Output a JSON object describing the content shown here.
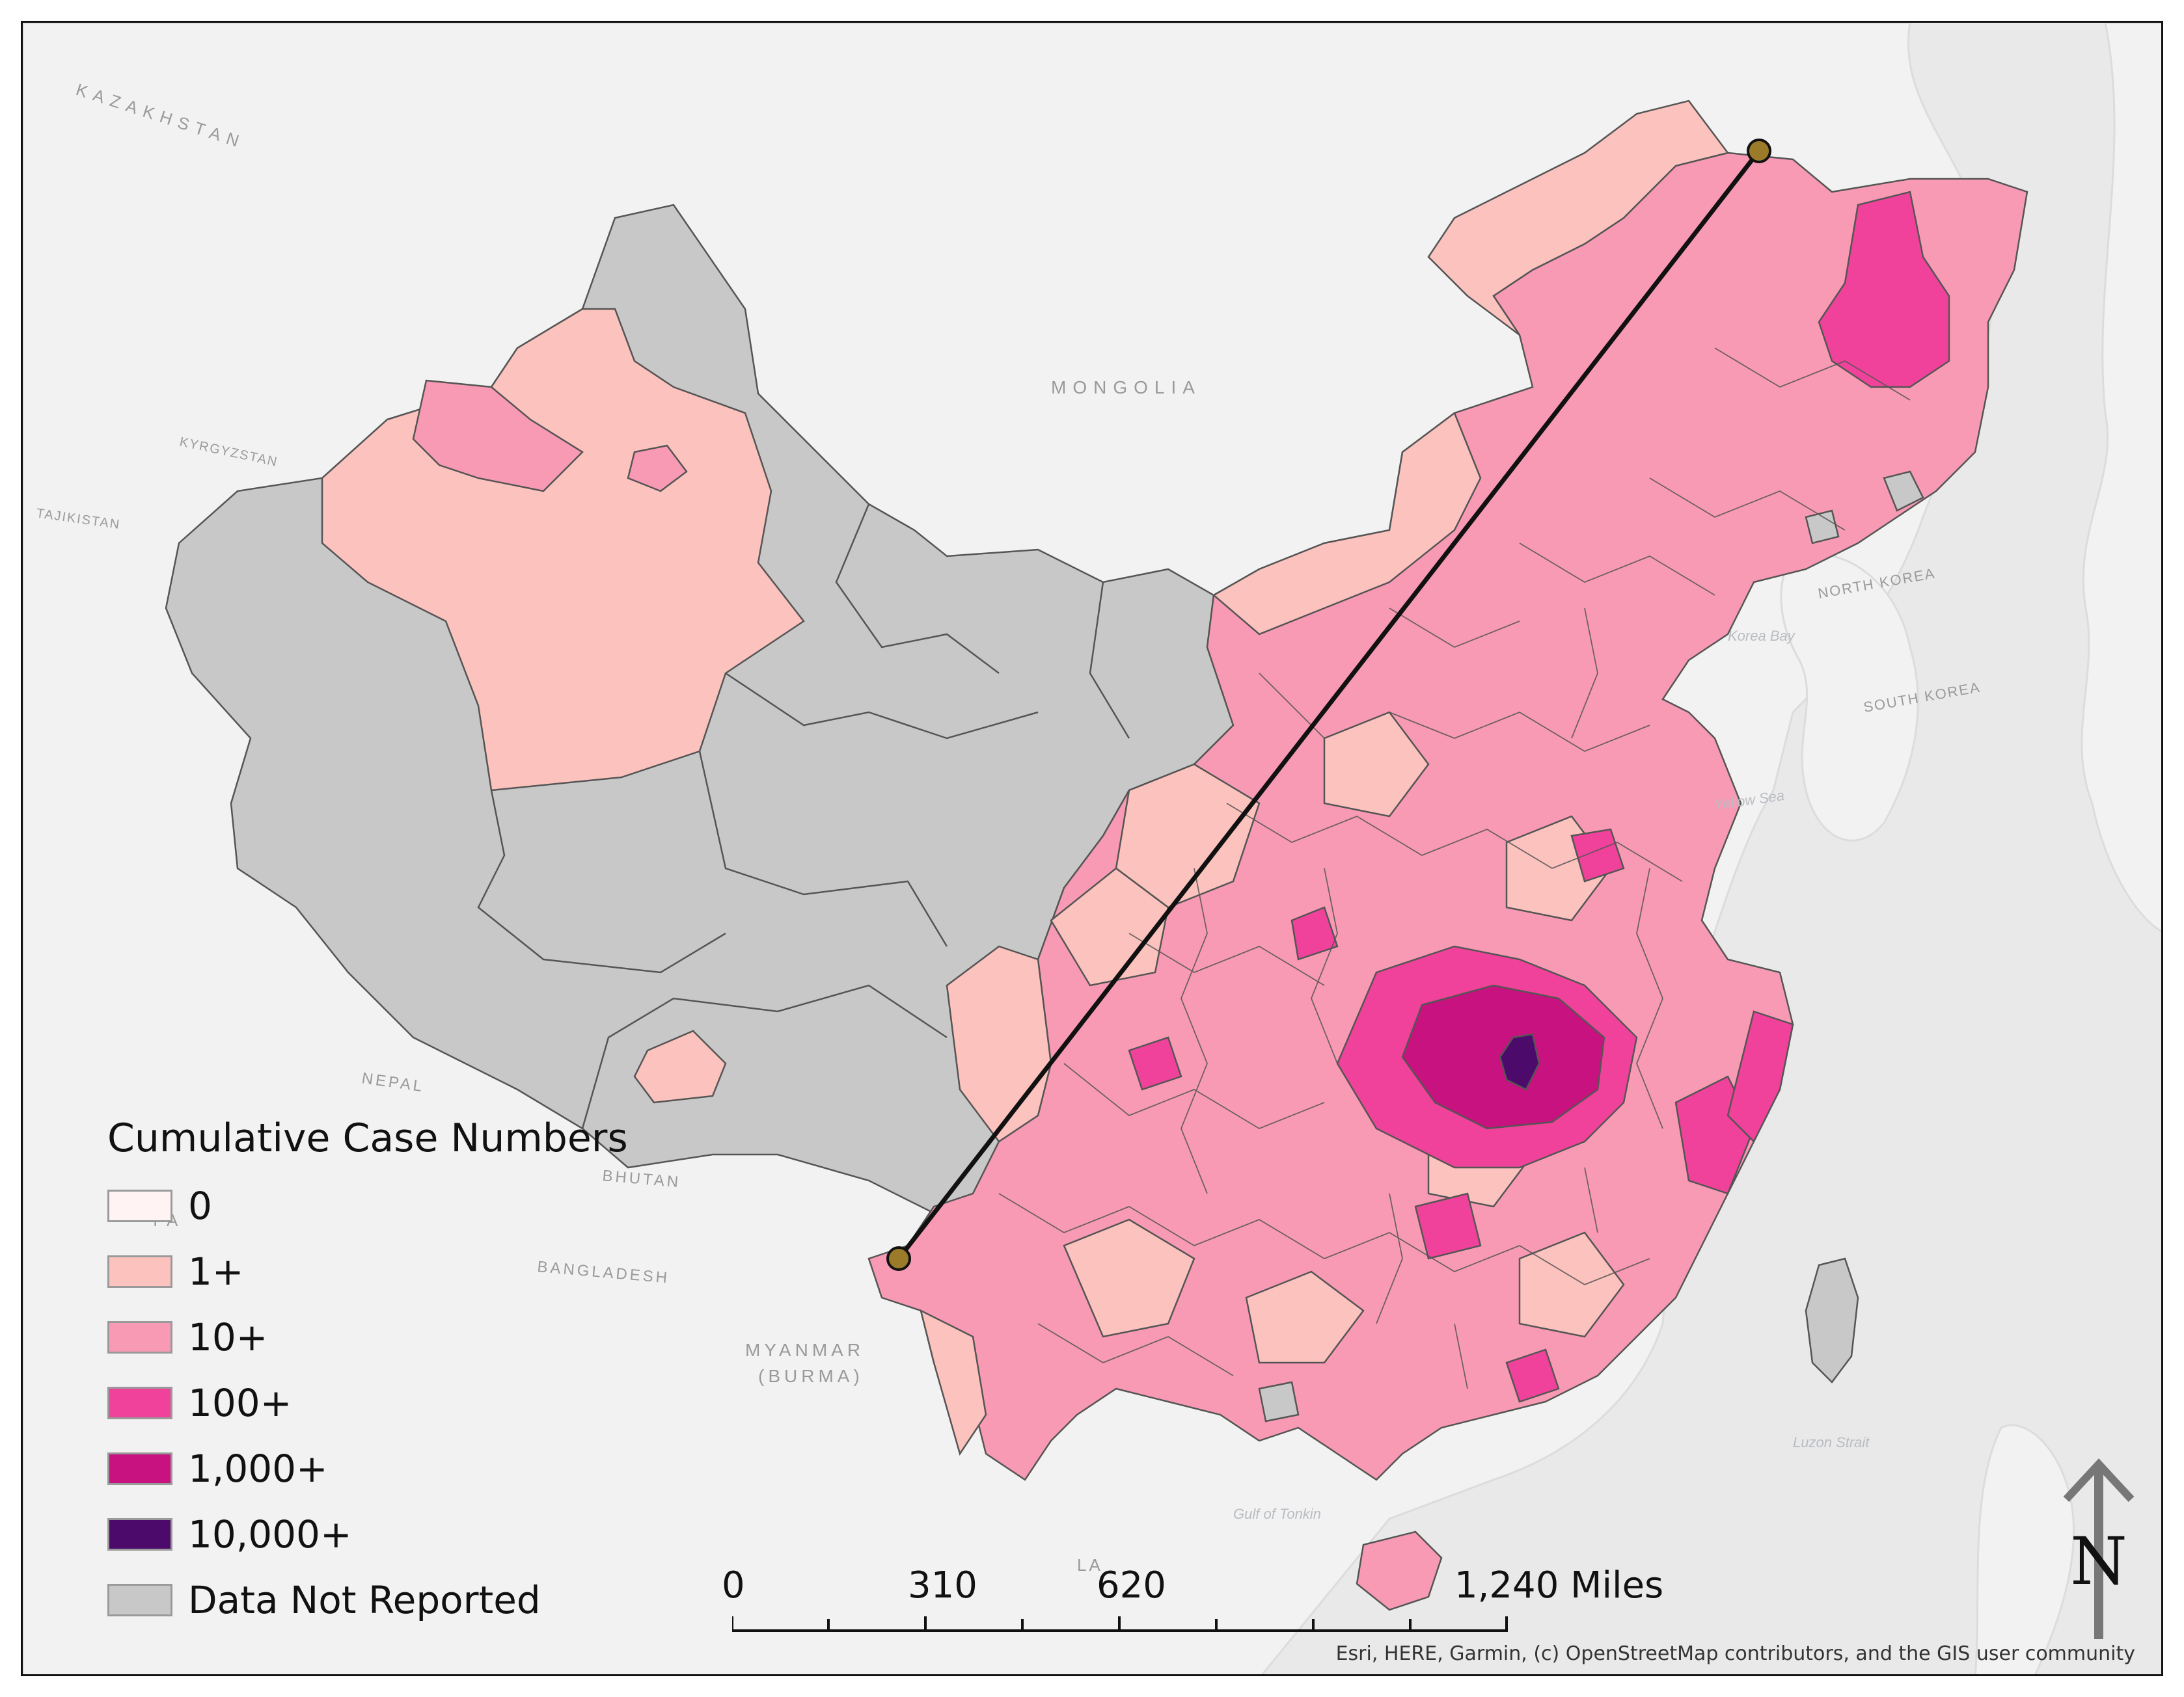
{
  "map": {
    "country_labels": {
      "kazakhstan": "KAZAKHSTAN",
      "mongolia": "MONGOLIA",
      "kyrgyzstan": "KYRGYZSTAN",
      "tajikistan": "TAJIKISTAN",
      "nepal": "NEPAL",
      "bhutan": "BHUTAN",
      "bangladesh": "BANGLADESH",
      "myanmar": "MYANMAR",
      "burma": "(BURMA)",
      "north_korea": "NORTH KOREA",
      "south_korea": "SOUTH KOREA",
      "lao": "LA",
      "india": "I A"
    },
    "water_labels": {
      "korea_bay": "Korea Bay",
      "yellow_sea": "Yellow Sea",
      "gulf_of_tonkin": "Gulf of Tonkin",
      "luzon_strait": "Luzon Strait"
    }
  },
  "legend": {
    "title": "Cumulative Case Numbers",
    "items": [
      {
        "label": "0",
        "color": "#fff4f3"
      },
      {
        "label": "1+",
        "color": "#fcc2bd"
      },
      {
        "label": "10+",
        "color": "#f99ab5"
      },
      {
        "label": "100+",
        "color": "#f0429a"
      },
      {
        "label": "1,000+",
        "color": "#c8127f"
      },
      {
        "label": "10,000+",
        "color": "#4c0a6b"
      },
      {
        "label": "Data Not Reported",
        "color": "#c8c8c8"
      }
    ]
  },
  "scale_bar": {
    "labels": [
      "0",
      "310",
      "620",
      "1,240"
    ],
    "unit": "Miles"
  },
  "north_arrow": {
    "label": "N",
    "icon": "north-arrow-icon"
  },
  "attribution": "Esri, HERE, Garmin, (c) OpenStreetMap contributors, and the GIS user community"
}
